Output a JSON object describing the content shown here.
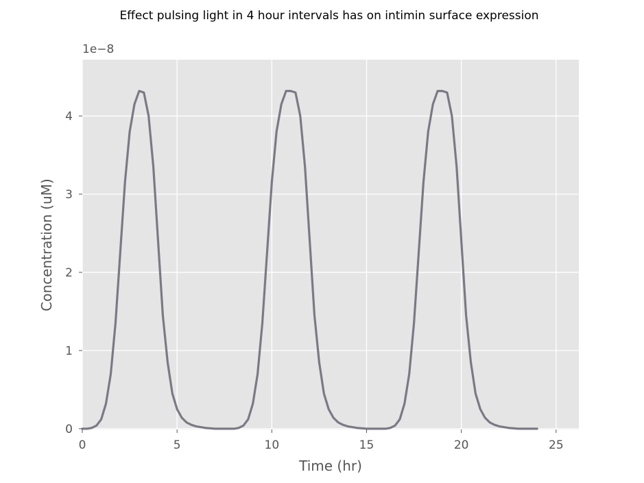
{
  "chart_data": {
    "type": "line",
    "title": "Effect pulsing light in 4 hour intervals has on intimin surface expression",
    "xlabel": "Time (hr)",
    "ylabel": "Concentration (uM)",
    "y_offset_label": "1e−8",
    "xlim": [
      0,
      26.2
    ],
    "ylim": [
      -0.01,
      4.72
    ],
    "x_ticks": [
      0,
      5,
      10,
      15,
      20,
      25
    ],
    "x_tick_labels": [
      "0",
      "5",
      "10",
      "15",
      "20",
      "25"
    ],
    "y_ticks": [
      0,
      1,
      2,
      3,
      4
    ],
    "y_tick_labels": [
      "0",
      "1",
      "2",
      "3",
      "4"
    ],
    "grid": true,
    "background": "#e5e5e5",
    "grid_color": "#ffffff",
    "line_color": "#7a7a85",
    "series": [
      {
        "x": [
          0,
          0.25,
          0.5,
          0.75,
          1.0,
          1.25,
          1.5,
          1.75,
          2.0,
          2.25,
          2.5,
          2.75,
          3.0,
          3.25,
          3.5,
          3.75,
          4.0,
          4.25,
          4.5,
          4.75,
          5.0,
          5.25,
          5.5,
          5.75,
          6.0,
          6.5,
          7.0,
          7.5,
          8.0,
          8.25,
          8.5,
          8.75,
          9.0,
          9.25,
          9.5,
          9.75,
          10.0,
          10.25,
          10.5,
          10.75,
          11.0,
          11.25,
          11.5,
          11.75,
          12.0,
          12.25,
          12.5,
          12.75,
          13.0,
          13.25,
          13.5,
          13.75,
          14.0,
          14.5,
          15.0,
          15.5,
          16.0,
          16.25,
          16.5,
          16.75,
          17.0,
          17.25,
          17.5,
          17.75,
          18.0,
          18.25,
          18.5,
          18.75,
          19.0,
          19.25,
          19.5,
          19.75,
          20.0,
          20.25,
          20.5,
          20.75,
          21.0,
          21.25,
          21.5,
          21.75,
          22.0,
          22.5,
          23.0,
          23.5,
          24.0
        ],
        "y": [
          0,
          0,
          0.01,
          0.04,
          0.12,
          0.32,
          0.7,
          1.35,
          2.25,
          3.15,
          3.8,
          4.15,
          4.32,
          4.3,
          4.0,
          3.35,
          2.4,
          1.45,
          0.85,
          0.45,
          0.25,
          0.14,
          0.08,
          0.05,
          0.03,
          0.01,
          0,
          0,
          0,
          0.01,
          0.04,
          0.12,
          0.32,
          0.7,
          1.35,
          2.25,
          3.15,
          3.8,
          4.15,
          4.32,
          4.32,
          4.3,
          4.0,
          3.35,
          2.4,
          1.45,
          0.85,
          0.45,
          0.25,
          0.14,
          0.08,
          0.05,
          0.03,
          0.01,
          0,
          0,
          0,
          0.01,
          0.04,
          0.12,
          0.32,
          0.7,
          1.35,
          2.25,
          3.15,
          3.8,
          4.15,
          4.32,
          4.32,
          4.3,
          4.0,
          3.35,
          2.4,
          1.45,
          0.85,
          0.45,
          0.25,
          0.14,
          0.08,
          0.05,
          0.03,
          0.01,
          0,
          0,
          0
        ]
      }
    ]
  }
}
